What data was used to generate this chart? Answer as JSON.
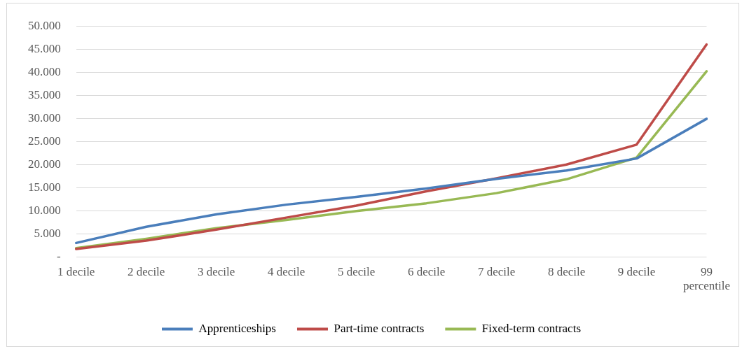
{
  "chart_data": {
    "type": "line",
    "categories": [
      "1 decile",
      "2 decile",
      "3 decile",
      "4 decile",
      "5 decile",
      "6 decile",
      "7 decile",
      "8 decile",
      "9 decile",
      "99 percentile"
    ],
    "series": [
      {
        "name": "Apprenticeships",
        "color": "#4a7ebb",
        "values": [
          3000,
          6500,
          9200,
          11300,
          13000,
          14800,
          16900,
          18700,
          21300,
          29900
        ]
      },
      {
        "name": "Part-time contracts",
        "color": "#be4b48",
        "values": [
          1700,
          3500,
          5900,
          8500,
          11100,
          14200,
          17000,
          20000,
          24300,
          46000
        ]
      },
      {
        "name": "Fixed-term contracts",
        "color": "#98b954",
        "values": [
          1900,
          3900,
          6200,
          8000,
          9900,
          11600,
          13800,
          16800,
          21500,
          40200
        ]
      }
    ],
    "ylim": [
      0,
      50000
    ],
    "yticks": [
      {
        "value": 0,
        "label": "-"
      },
      {
        "value": 5000,
        "label": "5.000"
      },
      {
        "value": 10000,
        "label": "10.000"
      },
      {
        "value": 15000,
        "label": "15.000"
      },
      {
        "value": 20000,
        "label": "20.000"
      },
      {
        "value": 25000,
        "label": "25.000"
      },
      {
        "value": 30000,
        "label": "30.000"
      },
      {
        "value": 35000,
        "label": "35.000"
      },
      {
        "value": 40000,
        "label": "40.000"
      },
      {
        "value": 45000,
        "label": "45.000"
      },
      {
        "value": 50000,
        "label": "50.000"
      }
    ],
    "grid": "y",
    "legend": "bottom",
    "marker": "none",
    "line_style": "solid"
  }
}
